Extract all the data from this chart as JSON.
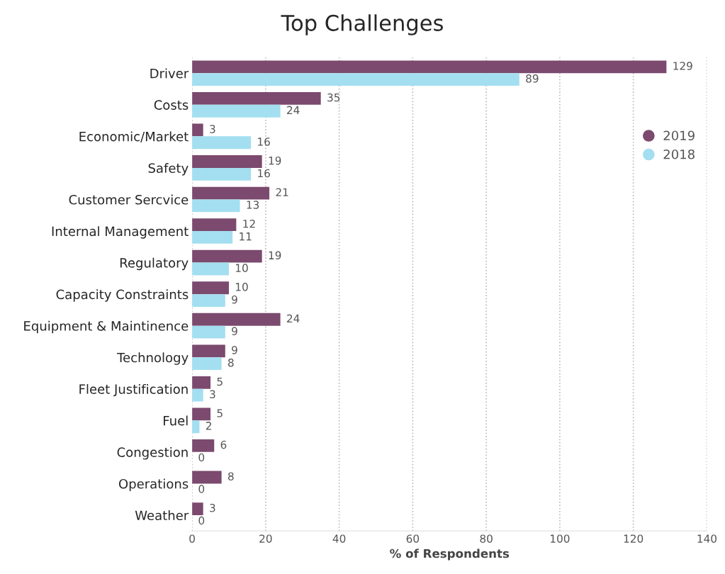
{
  "chart_data": {
    "type": "bar",
    "orientation": "horizontal",
    "title": "Top Challenges",
    "xlabel": "% of Respondents",
    "categories": [
      "Driver",
      "Costs",
      "Economic/Market",
      "Safety",
      "Customer Sercvice",
      "Internal Management",
      "Regulatory",
      "Capacity Constraints",
      "Equipment & Maintinence",
      "Technology",
      "Fleet Justification",
      "Fuel",
      "Congestion",
      "Operations",
      "Weather"
    ],
    "series": [
      {
        "name": "2019",
        "color": "#7b4a6e",
        "values": [
          129,
          35,
          3,
          19,
          21,
          12,
          19,
          10,
          24,
          9,
          5,
          5,
          6,
          8,
          3
        ]
      },
      {
        "name": "2018",
        "color": "#a3dff0",
        "values": [
          89,
          24,
          16,
          16,
          13,
          11,
          10,
          9,
          9,
          8,
          3,
          2,
          0,
          0,
          0
        ]
      }
    ],
    "xlim": [
      0,
      140
    ],
    "xticks": [
      0,
      20,
      40,
      60,
      80,
      100,
      120,
      140
    ],
    "grid": "x",
    "legend": "top right",
    "data_labels": true
  }
}
